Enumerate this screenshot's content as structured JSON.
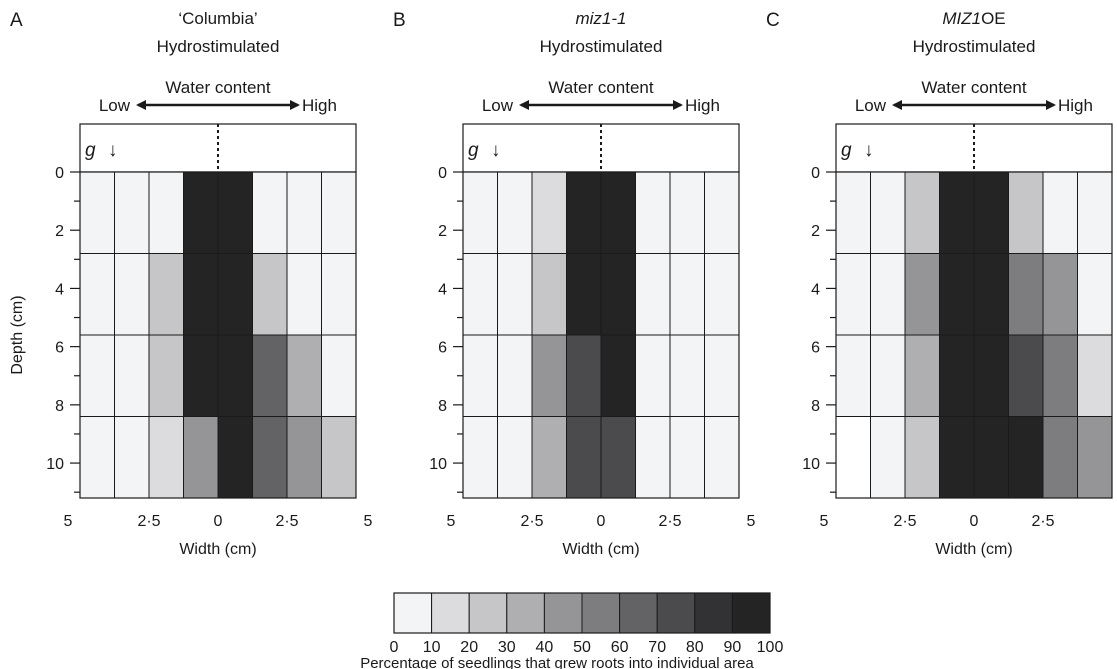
{
  "chart_data": [
    {
      "type": "heatmap",
      "panel_label": "A",
      "title_line1": "‘Columbia’",
      "title_line2": "Hydrostimulated",
      "title_italic": false,
      "water_content_label": "Water content",
      "low_label": "Low",
      "high_label": "High",
      "gravity_label": "g",
      "gravity_arrow": "↓",
      "ylabel": "Depth (cm)",
      "xlabel": "Width (cm)",
      "yticks": [
        "0",
        "2",
        "4",
        "6",
        "8",
        "10"
      ],
      "xticks": [
        "5",
        "2·5",
        "0",
        "2·5",
        "5"
      ],
      "x_range": [
        -5,
        5
      ],
      "y_range": [
        0,
        11.2
      ],
      "row_depths": [
        [
          0,
          2.8
        ],
        [
          2.8,
          5.6
        ],
        [
          5.6,
          8.4
        ],
        [
          8.4,
          11.2
        ]
      ],
      "values": [
        [
          5,
          5,
          5,
          95,
          95,
          5,
          5,
          5
        ],
        [
          5,
          5,
          25,
          95,
          95,
          25,
          5,
          5
        ],
        [
          5,
          5,
          25,
          95,
          95,
          65,
          35,
          5
        ],
        [
          5,
          5,
          15,
          45,
          95,
          65,
          45,
          25
        ]
      ]
    },
    {
      "type": "heatmap",
      "panel_label": "B",
      "title_line1": "miz1-1",
      "title_line2": "Hydrostimulated",
      "title_italic": true,
      "water_content_label": "Water content",
      "low_label": "Low",
      "high_label": "High",
      "gravity_label": "g",
      "gravity_arrow": "↓",
      "ylabel": "",
      "xlabel": "Width (cm)",
      "yticks": [
        "0",
        "2",
        "4",
        "6",
        "8",
        "10"
      ],
      "xticks": [
        "5",
        "2·5",
        "0",
        "2·5",
        "5"
      ],
      "x_range": [
        -5,
        5
      ],
      "y_range": [
        0,
        11.2
      ],
      "row_depths": [
        [
          0,
          2.8
        ],
        [
          2.8,
          5.6
        ],
        [
          5.6,
          8.4
        ],
        [
          8.4,
          11.2
        ]
      ],
      "values": [
        [
          5,
          5,
          15,
          95,
          95,
          5,
          5,
          5
        ],
        [
          5,
          5,
          25,
          95,
          95,
          5,
          5,
          5
        ],
        [
          5,
          5,
          45,
          75,
          95,
          5,
          5,
          5
        ],
        [
          5,
          5,
          35,
          75,
          75,
          5,
          5,
          5
        ]
      ]
    },
    {
      "type": "heatmap",
      "panel_label": "C",
      "title_line1_italic": "MIZ1",
      "title_line1": "OE",
      "title_line2": "Hydrostimulated",
      "title_italic": false,
      "water_content_label": "Water content",
      "low_label": "Low",
      "high_label": "High",
      "gravity_label": "g",
      "gravity_arrow": "↓",
      "ylabel": "",
      "xlabel": "Width (cm)",
      "yticks": [
        "0",
        "2",
        "4",
        "6",
        "8",
        "10"
      ],
      "xticks": [
        "5",
        "2·5",
        "0",
        "2·5",
        "5"
      ],
      "x_range": [
        -5,
        5
      ],
      "y_range": [
        0,
        11.2
      ],
      "row_depths": [
        [
          0,
          2.8
        ],
        [
          2.8,
          5.6
        ],
        [
          5.6,
          8.4
        ],
        [
          8.4,
          11.2
        ]
      ],
      "values": [
        [
          5,
          5,
          25,
          95,
          95,
          25,
          5,
          5
        ],
        [
          5,
          5,
          45,
          95,
          95,
          55,
          45,
          5
        ],
        [
          5,
          5,
          35,
          95,
          95,
          75,
          55,
          15
        ],
        [
          0,
          5,
          25,
          95,
          95,
          100,
          55,
          45
        ]
      ]
    }
  ],
  "legend": {
    "ticks": [
      "0",
      "10",
      "20",
      "30",
      "40",
      "50",
      "60",
      "70",
      "80",
      "90",
      "100"
    ],
    "label": "Percentage of seedlings that grew roots into individual area"
  },
  "colors": {
    "scale": [
      "#f3f4f5",
      "#dcdcde",
      "#c6c6c8",
      "#afafb1",
      "#959597",
      "#7d7d7f",
      "#636365",
      "#4b4b4d",
      "#323234",
      "#242424"
    ],
    "empty": "#ffffff",
    "ink": "#1a1a1a"
  }
}
